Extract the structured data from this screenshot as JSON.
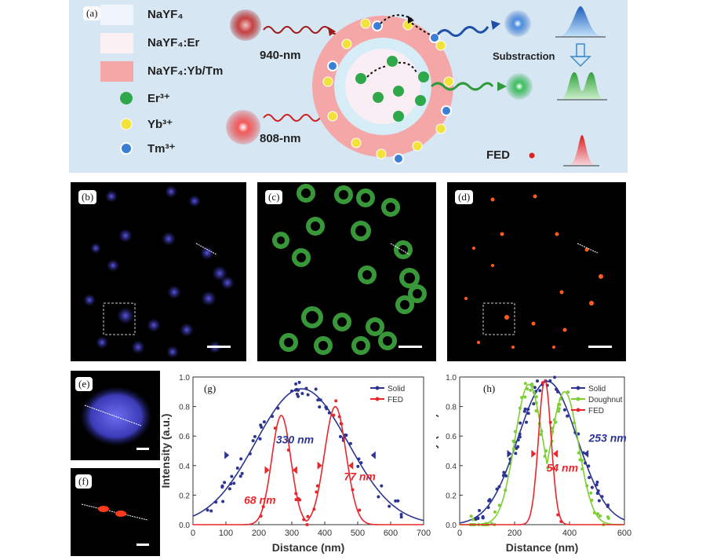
{
  "panel_a": {
    "tag": "(a)",
    "legend": [
      {
        "label": "NaYF₄",
        "swatch": "#eef4fa"
      },
      {
        "label": "NaYF₄:Er",
        "swatch": "#fbf1f4"
      },
      {
        "label": "NaYF₄:Yb/Tm",
        "swatch": "#f5a7a8"
      },
      {
        "label": "Er³⁺",
        "swatch": "#2ea84a"
      },
      {
        "label": "Yb³⁺",
        "swatch": "#f2e23a"
      },
      {
        "label": "Tm³⁺",
        "swatch": "#3a7fd6"
      }
    ],
    "label_940": "940-nm",
    "label_808": "808-nm",
    "label_subtraction": "Substraction",
    "label_fed": "FED"
  },
  "panel_tags": {
    "b": "(b)",
    "c": "(c)",
    "d": "(d)",
    "e": "(e)",
    "f": "(f)",
    "g": "(g)",
    "h": "(h)"
  },
  "colors": {
    "solid": "#2c3592",
    "fed": "#e8262b",
    "doughnut": "#7ccf35"
  },
  "chart_data": [
    {
      "type": "line",
      "panel": "(g)",
      "xlabel": "Distance (nm)",
      "ylabel": "Intensity (a.u.)",
      "xlim": [
        0,
        700
      ],
      "ylim": [
        0,
        1.0
      ],
      "xticks": [
        0,
        100,
        200,
        300,
        400,
        500,
        600,
        700
      ],
      "yticks": [
        0.0,
        0.2,
        0.4,
        0.6,
        0.8,
        1.0
      ],
      "legend": [
        "Solid",
        "FED"
      ],
      "series": [
        {
          "name": "Solid",
          "fit": {
            "amp": 0.92,
            "center": 330,
            "fwhm": 330
          }
        },
        {
          "name": "FED",
          "fit": [
            {
              "amp": 0.74,
              "center": 268,
              "fwhm": 68
            },
            {
              "amp": 0.8,
              "center": 432,
              "fwhm": 77
            }
          ]
        }
      ],
      "annotations": [
        "330 nm",
        "77 nm",
        "68 nm"
      ]
    },
    {
      "type": "line",
      "panel": "(h)",
      "xlabel": "Distance (nm)",
      "ylabel": "Intensity (a.u.)",
      "xlim": [
        0,
        600
      ],
      "ylim": [
        0,
        1.0
      ],
      "xticks": [
        0,
        200,
        400,
        600
      ],
      "yticks": [
        0.0,
        0.2,
        0.4,
        0.6,
        0.8,
        1.0
      ],
      "legend": [
        "Solid",
        "Doughnut",
        "FED"
      ],
      "series": [
        {
          "name": "Solid",
          "fit": {
            "amp": 0.97,
            "center": 320,
            "fwhm": 253
          }
        },
        {
          "name": "Doughnut",
          "fit": [
            {
              "amp": 0.95,
              "center": 252,
              "fwhm": 120
            },
            {
              "amp": 0.9,
              "center": 382,
              "fwhm": 120
            }
          ]
        },
        {
          "name": "FED",
          "fit": {
            "amp": 0.98,
            "center": 310,
            "fwhm": 54
          }
        }
      ],
      "annotations": [
        "253 nm",
        "54 nm"
      ]
    }
  ]
}
